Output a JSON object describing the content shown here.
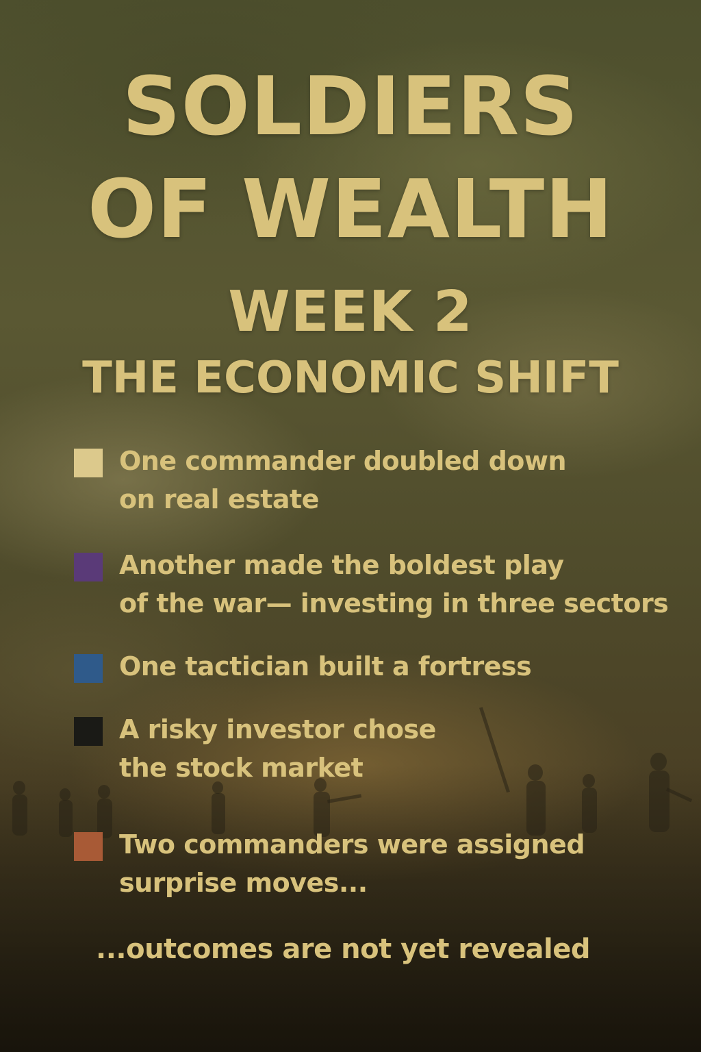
{
  "poster": {
    "title_line1": "SOLDIERS",
    "title_line2": "OF WEALTH",
    "week": "WEEK 2",
    "subtitle": "THE ECONOMIC SHIFT",
    "text_color": "#d8c27c",
    "items": [
      {
        "color": "#dcc98c",
        "line1": "One commander doubled down",
        "line2": "on real estate"
      },
      {
        "color": "#5a3a78",
        "line1": "Another made the boldest play",
        "line2": "of the war— investing in three sectors"
      },
      {
        "color": "#2f5a8a",
        "line1": "One tactician built a fortress",
        "line2": ""
      },
      {
        "color": "#1a1a16",
        "line1": "A risky investor chose",
        "line2": "the stock market"
      },
      {
        "color": "#a85a36",
        "line1": "Two commanders were assigned",
        "line2": "surprise moves..."
      }
    ],
    "footer": "...outcomes are not yet revealed"
  }
}
